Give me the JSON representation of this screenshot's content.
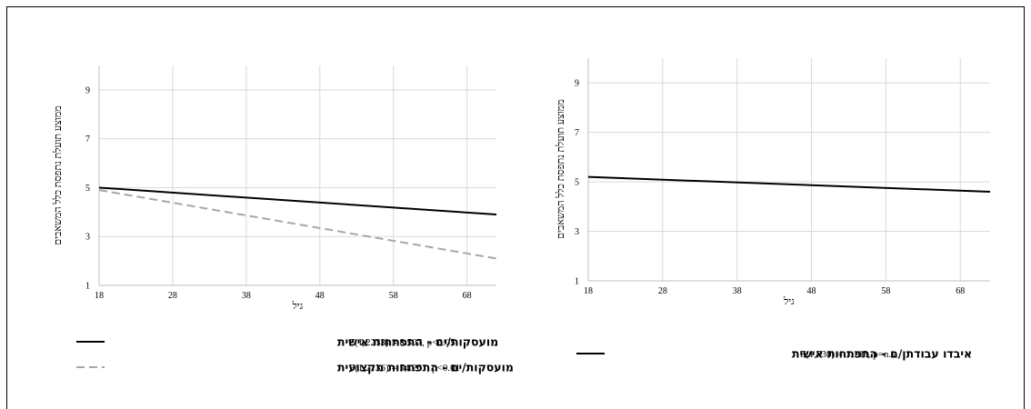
{
  "chart_data": [
    {
      "type": "line",
      "title": "",
      "xlabel": "גיל",
      "ylabel": "ממוצע תועלת נתפסת כלל המשאבים",
      "xlim": [
        18,
        72
      ],
      "ylim": [
        1,
        10
      ],
      "xticks": [
        18,
        28,
        38,
        48,
        58,
        68
      ],
      "yticks": [
        1,
        3,
        5,
        7,
        9
      ],
      "grid": true,
      "series": [
        {
          "name": "מועסקות/ים - התפתחות אישית",
          "stat": "F(1,2233) = 8.507, p<0.05",
          "color": "#000000",
          "dash": "solid",
          "x": [
            18,
            72
          ],
          "y": [
            5.0,
            3.9
          ]
        },
        {
          "name": "מועסקות/ים - התפתחות מקצועית",
          "stat": "F(1,2136) = 54.261, p<0.01",
          "color": "#a6a6a6",
          "dash": "dashed",
          "x": [
            18,
            72
          ],
          "y": [
            4.9,
            2.1
          ]
        }
      ]
    },
    {
      "type": "line",
      "title": "",
      "xlabel": "גיל",
      "ylabel": "ממוצע תועלת נתפסת כלל המשאבים",
      "xlim": [
        18,
        72
      ],
      "ylim": [
        1,
        10
      ],
      "xticks": [
        18,
        28,
        38,
        48,
        58,
        68
      ],
      "yticks": [
        1,
        3,
        5,
        7,
        9
      ],
      "grid": true,
      "series": [
        {
          "name": "איבדו עבודתן/ם - התפתחות אישית",
          "stat": "F(1,730) = 1.103, p=n.s",
          "color": "#000000",
          "dash": "solid",
          "x": [
            18,
            72
          ],
          "y": [
            5.2,
            4.6
          ]
        }
      ]
    }
  ]
}
